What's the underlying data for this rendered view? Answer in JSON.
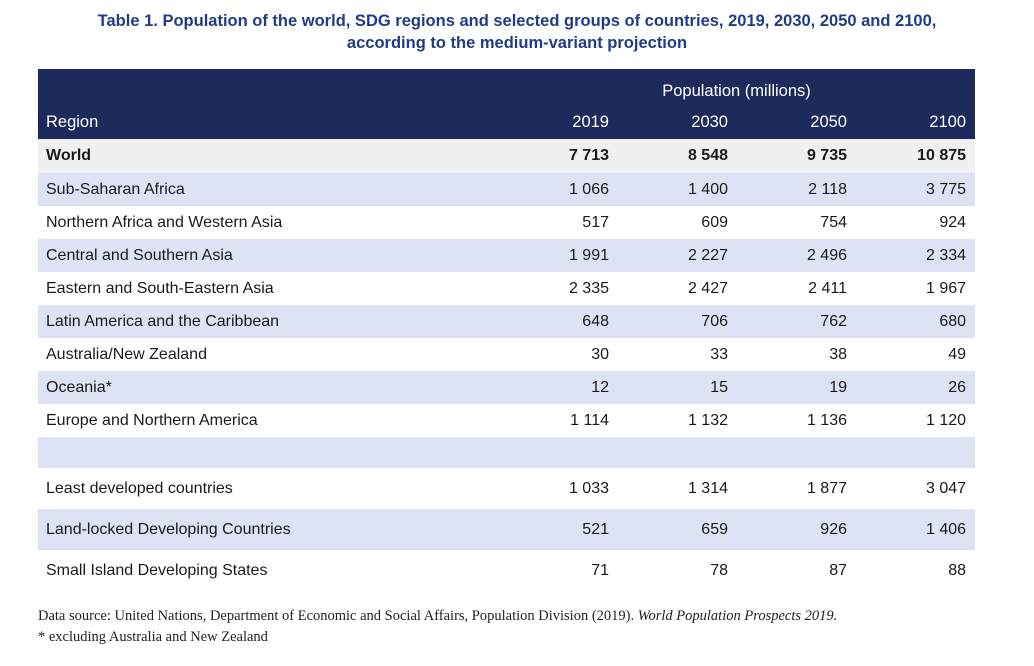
{
  "title": {
    "line1": "Table 1. Population of the world, SDG regions and selected groups of countries, 2019, 2030, 2050 and 2100,",
    "line2": "according to the medium-variant projection"
  },
  "header": {
    "group_label": "Population (millions)",
    "region_label": "Region",
    "years": [
      "2019",
      "2030",
      "2050",
      "2100"
    ]
  },
  "world": {
    "region": "World",
    "values": [
      "7 713",
      "8 548",
      "9 735",
      "10 875"
    ]
  },
  "regions": [
    {
      "region": "Sub-Saharan Africa",
      "values": [
        "1 066",
        "1 400",
        "2 118",
        "3 775"
      ]
    },
    {
      "region": "Northern Africa and Western Asia",
      "values": [
        "517",
        "609",
        "754",
        "924"
      ]
    },
    {
      "region": "Central and Southern Asia",
      "values": [
        "1 991",
        "2 227",
        "2 496",
        "2 334"
      ]
    },
    {
      "region": "Eastern and South-Eastern Asia",
      "values": [
        "2 335",
        "2 427",
        "2 411",
        "1 967"
      ]
    },
    {
      "region": "Latin America and the Caribbean",
      "values": [
        "648",
        "706",
        "762",
        "680"
      ]
    },
    {
      "region": "Australia/New Zealand",
      "values": [
        "30",
        "33",
        "38",
        "49"
      ]
    },
    {
      "region": "Oceania*",
      "values": [
        "12",
        "15",
        "19",
        "26"
      ]
    },
    {
      "region": "Europe and Northern America",
      "values": [
        "1 114",
        "1 132",
        "1 136",
        "1 120"
      ]
    }
  ],
  "groups": [
    {
      "region": "Least developed countries",
      "values": [
        "1 033",
        "1 314",
        "1 877",
        "3 047"
      ]
    },
    {
      "region": "Land-locked Developing Countries",
      "values": [
        "521",
        "659",
        "926",
        "1 406"
      ]
    },
    {
      "region": "Small Island Developing States",
      "values": [
        "71",
        "78",
        "87",
        "88"
      ]
    }
  ],
  "footnote": {
    "source_prefix": "Data source: United Nations, Department of Economic and Social Affairs, Population Division (2019). ",
    "source_title": "World Population Prospects 2019.",
    "note": "* excluding Australia and New Zealand"
  },
  "colors": {
    "title": "#1f3c88",
    "header_bg": "#1c2a5c",
    "stripe": "#dde3f4",
    "world_bg": "#f0f0f0"
  }
}
